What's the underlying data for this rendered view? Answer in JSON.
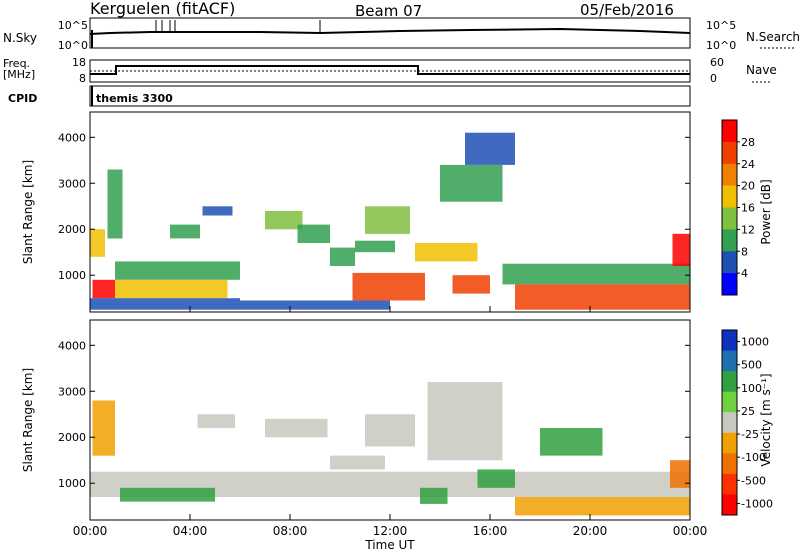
{
  "header": {
    "station": "Kerguelen (fitACF)",
    "beam": "Beam 07",
    "date": "05/Feb/2016"
  },
  "top_panel": {
    "nsky_label": "N.Sky",
    "nsky_ticks": [
      "10^5",
      "10^0"
    ],
    "nsearch_label": "N.Search",
    "nsearch_ticks": [
      "10^5",
      "10^0"
    ],
    "freq_label": "Freq.",
    "freq_unit": "[MHz]",
    "freq_ticks": [
      "18",
      "8"
    ],
    "nave_label": "Nave",
    "nave_ticks": [
      "60",
      "0"
    ],
    "cpid_label": "CPID",
    "cpid_value": "themis 3300"
  },
  "chart_data": [
    {
      "type": "heatmap",
      "name": "power",
      "ylabel": "Slant Range [km]",
      "yticks": [
        1000,
        2000,
        3000,
        4000
      ],
      "ylim": [
        200,
        4550
      ],
      "xlim_hours": [
        0,
        24
      ],
      "colorbar_label": "Power [dB]",
      "colorbar_ticks": [
        "28",
        "24",
        "20",
        "16",
        "12",
        "8",
        "4"
      ],
      "colorscale": [
        "#0000ff",
        "#1e50b4",
        "#32a050",
        "#80c040",
        "#f0c000",
        "#f08000",
        "#f04000",
        "#ff0000"
      ],
      "regions": [
        {
          "t0": 0.0,
          "t1": 0.6,
          "r0": 1400,
          "r1": 2000,
          "level": 0.5
        },
        {
          "t0": 0.7,
          "t1": 1.3,
          "r0": 1800,
          "r1": 3300,
          "level": 0.3
        },
        {
          "t0": 0.1,
          "t1": 1.0,
          "r0": 500,
          "r1": 900,
          "level": 0.95
        },
        {
          "t0": 1.0,
          "t1": 6.0,
          "r0": 900,
          "r1": 1300,
          "level": 0.35
        },
        {
          "t0": 1.0,
          "t1": 5.5,
          "r0": 500,
          "r1": 900,
          "level": 0.6
        },
        {
          "t0": 0.0,
          "t1": 6.0,
          "r0": 250,
          "r1": 500,
          "level": 0.2
        },
        {
          "t0": 3.2,
          "t1": 4.4,
          "r0": 1800,
          "r1": 2100,
          "level": 0.35
        },
        {
          "t0": 4.5,
          "t1": 5.7,
          "r0": 2300,
          "r1": 2500,
          "level": 0.2
        },
        {
          "t0": 7.0,
          "t1": 8.5,
          "r0": 2000,
          "r1": 2400,
          "level": 0.45
        },
        {
          "t0": 8.3,
          "t1": 9.6,
          "r0": 1700,
          "r1": 2100,
          "level": 0.3
        },
        {
          "t0": 9.6,
          "t1": 10.6,
          "r0": 1200,
          "r1": 1600,
          "level": 0.35
        },
        {
          "t0": 10.5,
          "t1": 13.4,
          "r0": 450,
          "r1": 1050,
          "level": 0.9
        },
        {
          "t0": 10.6,
          "t1": 12.2,
          "r0": 1500,
          "r1": 1750,
          "level": 0.35
        },
        {
          "t0": 11.0,
          "t1": 12.8,
          "r0": 1900,
          "r1": 2500,
          "level": 0.4
        },
        {
          "t0": 13.0,
          "t1": 15.5,
          "r0": 1300,
          "r1": 1700,
          "level": 0.6
        },
        {
          "t0": 14.0,
          "t1": 16.5,
          "r0": 2600,
          "r1": 3400,
          "level": 0.3
        },
        {
          "t0": 15.0,
          "t1": 17.0,
          "r0": 3400,
          "r1": 4100,
          "level": 0.15
        },
        {
          "t0": 14.5,
          "t1": 16.0,
          "r0": 600,
          "r1": 1000,
          "level": 0.8
        },
        {
          "t0": 16.5,
          "t1": 24.0,
          "r0": 800,
          "r1": 1250,
          "level": 0.35
        },
        {
          "t0": 17.0,
          "t1": 24.0,
          "r0": 250,
          "r1": 800,
          "level": 0.9
        },
        {
          "t0": 23.3,
          "t1": 24.0,
          "r0": 1200,
          "r1": 1900,
          "level": 0.95
        },
        {
          "t0": 6.0,
          "t1": 12.0,
          "r0": 250,
          "r1": 450,
          "level": 0.15
        }
      ]
    },
    {
      "type": "heatmap",
      "name": "velocity",
      "ylabel": "Slant Range [km]",
      "yticks": [
        1000,
        2000,
        3000,
        4000
      ],
      "ylim": [
        200,
        4550
      ],
      "xlabel": "Time UT",
      "xticks": [
        "00:00",
        "04:00",
        "08:00",
        "12:00",
        "16:00",
        "20:00",
        "00:00"
      ],
      "xlim_hours": [
        0,
        24
      ],
      "colorbar_label": "Velocity [m s⁻¹]",
      "colorbar_ticks": [
        "1000",
        "500",
        "100",
        "25",
        "-25",
        "-100",
        "-500",
        "-1000"
      ],
      "colorscale": [
        "#1030c0",
        "#2070b0",
        "#30a040",
        "#70d040",
        "#c8c8c0",
        "#f0a000",
        "#f07000",
        "#ff3000",
        "#ff0000"
      ],
      "regions": [
        {
          "t0": 0.0,
          "t1": 24.0,
          "r0": 700,
          "r1": 1250,
          "level": 0.5
        },
        {
          "t0": 0.1,
          "t1": 1.0,
          "r0": 1600,
          "r1": 2800,
          "level": 0.65
        },
        {
          "t0": 4.3,
          "t1": 5.8,
          "r0": 2200,
          "r1": 2500,
          "level": 0.5
        },
        {
          "t0": 7.0,
          "t1": 9.5,
          "r0": 2000,
          "r1": 2400,
          "level": 0.5
        },
        {
          "t0": 9.6,
          "t1": 11.8,
          "r0": 1300,
          "r1": 1600,
          "level": 0.5
        },
        {
          "t0": 11.0,
          "t1": 13.0,
          "r0": 1800,
          "r1": 2500,
          "level": 0.5
        },
        {
          "t0": 13.5,
          "t1": 16.5,
          "r0": 1500,
          "r1": 3200,
          "level": 0.5
        },
        {
          "t0": 15.5,
          "t1": 17.0,
          "r0": 900,
          "r1": 1300,
          "level": 0.22
        },
        {
          "t0": 13.2,
          "t1": 14.3,
          "r0": 550,
          "r1": 900,
          "level": 0.2
        },
        {
          "t0": 1.2,
          "t1": 5.0,
          "r0": 600,
          "r1": 900,
          "level": 0.25
        },
        {
          "t0": 17.0,
          "t1": 24.0,
          "r0": 300,
          "r1": 700,
          "level": 0.62
        },
        {
          "t0": 23.2,
          "t1": 24.0,
          "r0": 900,
          "r1": 1500,
          "level": 0.7
        },
        {
          "t0": 18.0,
          "t1": 20.5,
          "r0": 1600,
          "r1": 2200,
          "level": 0.25
        }
      ]
    }
  ]
}
